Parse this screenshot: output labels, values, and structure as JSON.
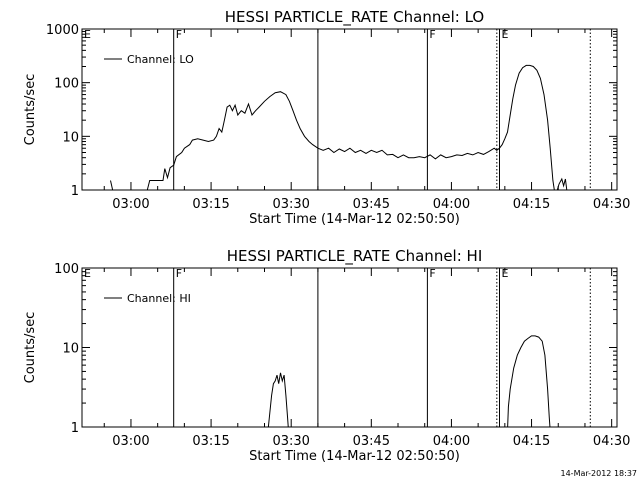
{
  "footer": {
    "timestamp": "14-Mar-2012 18:37"
  },
  "chart_data": [
    {
      "type": "line",
      "title": "HESSI PARTICLE_RATE Channel: LO",
      "xlabel": "Start Time (14-Mar-12 02:50:50)",
      "ylabel": "Counts/sec",
      "yscale": "log",
      "ylim": [
        1,
        1000
      ],
      "xlim": [
        "02:50:50",
        "04:31:00"
      ],
      "xticks": [
        "03:00",
        "03:15",
        "03:30",
        "03:45",
        "04:00",
        "04:15",
        "04:30"
      ],
      "yticks": [
        "1",
        "10",
        "100",
        "1000"
      ],
      "legend": {
        "label": "Channel: LO",
        "position": "top-left"
      },
      "markers": [
        {
          "time": "02:50:50",
          "label": "E",
          "style": "solid"
        },
        {
          "time": "03:08:00",
          "label": "F",
          "style": "solid"
        },
        {
          "time": "03:35:00",
          "label": "",
          "style": "solid"
        },
        {
          "time": "03:55:30",
          "label": "F",
          "style": "solid"
        },
        {
          "time": "04:08:30",
          "label": "",
          "style": "dotted"
        },
        {
          "time": "04:09:00",
          "label": "E",
          "style": "solid"
        },
        {
          "time": "04:26:00",
          "label": "",
          "style": "dotted"
        }
      ],
      "series": [
        {
          "name": "Channel: LO",
          "segments": [
            [
              [
                "02:56:10",
                1.5
              ],
              [
                "02:56:40",
                0.9
              ]
            ],
            [
              [
                "03:03:00",
                0.95
              ],
              [
                "03:03:30",
                1.5
              ],
              [
                "03:06:00",
                1.5
              ],
              [
                "03:06:20",
                2.5
              ],
              [
                "03:06:50",
                1.7
              ],
              [
                "03:07:20",
                2.6
              ],
              [
                "03:08:00",
                2.9
              ],
              [
                "03:08:30",
                4.2
              ],
              [
                "03:09:30",
                5.0
              ],
              [
                "03:10:00",
                6.0
              ],
              [
                "03:11:00",
                7.0
              ],
              [
                "03:11:30",
                8.5
              ],
              [
                "03:12:30",
                9.0
              ],
              [
                "03:13:30",
                8.5
              ],
              [
                "03:14:30",
                8.0
              ],
              [
                "03:15:30",
                8.5
              ],
              [
                "03:16:00",
                10
              ],
              [
                "03:16:30",
                14
              ],
              [
                "03:17:00",
                12
              ],
              [
                "03:17:30",
                20
              ],
              [
                "03:18:00",
                35
              ],
              [
                "03:18:30",
                38
              ],
              [
                "03:19:00",
                30
              ],
              [
                "03:19:30",
                38
              ],
              [
                "03:20:00",
                25
              ],
              [
                "03:20:40",
                30
              ],
              [
                "03:21:20",
                27
              ],
              [
                "03:22:00",
                40
              ],
              [
                "03:22:40",
                25
              ],
              [
                "03:23:20",
                30
              ],
              [
                "03:24:00",
                35
              ],
              [
                "03:25:00",
                45
              ],
              [
                "03:26:00",
                55
              ],
              [
                "03:27:00",
                65
              ],
              [
                "03:28:00",
                68
              ],
              [
                "03:29:00",
                60
              ],
              [
                "03:29:40",
                45
              ],
              [
                "03:30:20",
                30
              ],
              [
                "03:31:00",
                20
              ],
              [
                "03:31:40",
                14
              ],
              [
                "03:32:30",
                10
              ],
              [
                "03:33:20",
                8
              ],
              [
                "03:34:00",
                7
              ],
              [
                "03:35:00",
                6
              ],
              [
                "03:36:00",
                5.5
              ],
              [
                "03:37:00",
                6
              ],
              [
                "03:38:00",
                5
              ],
              [
                "03:39:00",
                5.8
              ],
              [
                "03:40:00",
                5.2
              ],
              [
                "03:41:00",
                6
              ],
              [
                "03:42:00",
                5
              ],
              [
                "03:43:00",
                5.5
              ],
              [
                "03:44:00",
                4.8
              ],
              [
                "03:45:00",
                5.5
              ],
              [
                "03:46:00",
                5
              ],
              [
                "03:47:00",
                5.5
              ],
              [
                "03:48:00",
                4.5
              ],
              [
                "03:49:00",
                4.6
              ],
              [
                "03:50:00",
                4.0
              ],
              [
                "03:51:00",
                4.5
              ],
              [
                "03:52:00",
                4.0
              ],
              [
                "03:53:00",
                4.0
              ],
              [
                "03:54:00",
                4.2
              ],
              [
                "03:55:00",
                4.0
              ],
              [
                "03:56:00",
                4.5
              ],
              [
                "03:57:00",
                3.8
              ],
              [
                "03:58:00",
                4.5
              ],
              [
                "03:59:00",
                4.0
              ],
              [
                "04:00:00",
                4.2
              ],
              [
                "04:01:00",
                4.5
              ],
              [
                "04:02:00",
                4.4
              ],
              [
                "04:03:00",
                4.8
              ],
              [
                "04:04:00",
                4.5
              ],
              [
                "04:05:00",
                5.0
              ],
              [
                "04:06:00",
                4.6
              ],
              [
                "04:07:00",
                5.2
              ],
              [
                "04:08:00",
                6.0
              ],
              [
                "04:08:30",
                5.5
              ],
              [
                "04:09:00",
                6.0
              ],
              [
                "04:09:30",
                7
              ],
              [
                "04:10:00",
                9
              ],
              [
                "04:10:30",
                12
              ],
              [
                "04:11:00",
                25
              ],
              [
                "04:11:30",
                50
              ],
              [
                "04:12:00",
                90
              ],
              [
                "04:12:40",
                150
              ],
              [
                "04:13:20",
                190
              ],
              [
                "04:14:00",
                210
              ],
              [
                "04:14:40",
                210
              ],
              [
                "04:15:20",
                200
              ],
              [
                "04:16:00",
                170
              ],
              [
                "04:16:40",
                120
              ],
              [
                "04:17:20",
                60
              ],
              [
                "04:18:00",
                20
              ],
              [
                "04:18:30",
                6
              ],
              [
                "04:19:00",
                1.5
              ],
              [
                "04:19:20",
                0.9
              ]
            ],
            [
              [
                "04:19:40",
                0.9
              ],
              [
                "04:20:10",
                1.3
              ],
              [
                "04:20:40",
                1.6
              ],
              [
                "04:21:00",
                1.2
              ],
              [
                "04:21:20",
                1.6
              ],
              [
                "04:21:40",
                0.9
              ]
            ]
          ]
        }
      ]
    },
    {
      "type": "line",
      "title": "HESSI PARTICLE_RATE Channel: HI",
      "xlabel": "Start Time (14-Mar-12 02:50:50)",
      "ylabel": "Counts/sec",
      "yscale": "log",
      "ylim": [
        1,
        100
      ],
      "xlim": [
        "02:50:50",
        "04:31:00"
      ],
      "xticks": [
        "03:00",
        "03:15",
        "03:30",
        "03:45",
        "04:00",
        "04:15",
        "04:30"
      ],
      "yticks": [
        "1",
        "10",
        "100"
      ],
      "legend": {
        "label": "Channel: HI",
        "position": "top-left"
      },
      "markers": [
        {
          "time": "02:50:50",
          "label": "E",
          "style": "solid"
        },
        {
          "time": "03:08:00",
          "label": "F",
          "style": "solid"
        },
        {
          "time": "03:35:00",
          "label": "",
          "style": "solid"
        },
        {
          "time": "03:55:30",
          "label": "F",
          "style": "solid"
        },
        {
          "time": "04:08:30",
          "label": "",
          "style": "dotted"
        },
        {
          "time": "04:09:00",
          "label": "E",
          "style": "solid"
        },
        {
          "time": "04:26:00",
          "label": "",
          "style": "dotted"
        }
      ],
      "series": [
        {
          "name": "Channel: HI",
          "segments": [
            [
              [
                "03:25:40",
                0.9
              ],
              [
                "03:26:00",
                1.5
              ],
              [
                "03:26:20",
                2.5
              ],
              [
                "03:26:40",
                3.5
              ],
              [
                "03:27:00",
                3.8
              ],
              [
                "03:27:20",
                4.5
              ],
              [
                "03:27:40",
                3.5
              ],
              [
                "03:28:00",
                4.8
              ],
              [
                "03:28:20",
                3.8
              ],
              [
                "03:28:40",
                4.5
              ],
              [
                "03:29:00",
                2.5
              ],
              [
                "03:29:20",
                1.3
              ],
              [
                "03:29:30",
                0.9
              ]
            ],
            [
              [
                "04:10:30",
                0.9
              ],
              [
                "04:10:40",
                1.8
              ],
              [
                "04:11:00",
                3
              ],
              [
                "04:11:40",
                5.5
              ],
              [
                "04:12:20",
                8
              ],
              [
                "04:13:00",
                10
              ],
              [
                "04:13:40",
                12
              ],
              [
                "04:14:20",
                13
              ],
              [
                "04:15:00",
                14
              ],
              [
                "04:15:40",
                14
              ],
              [
                "04:16:20",
                13.5
              ],
              [
                "04:17:00",
                12
              ],
              [
                "04:17:30",
                8
              ],
              [
                "04:18:00",
                3
              ],
              [
                "04:18:20",
                1.3
              ],
              [
                "04:18:30",
                0.9
              ]
            ]
          ]
        }
      ]
    }
  ]
}
